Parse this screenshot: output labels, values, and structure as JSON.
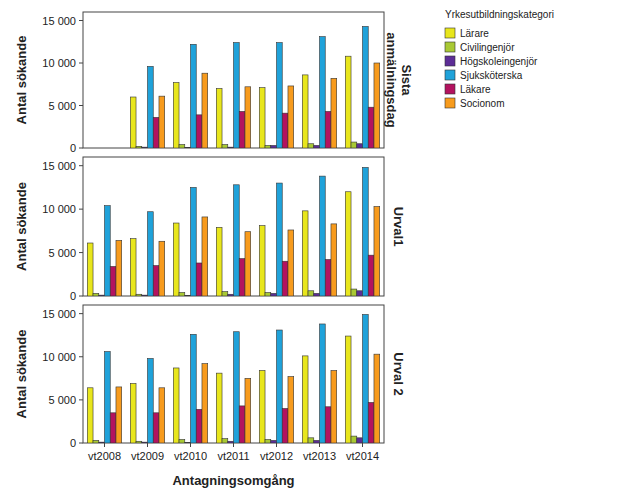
{
  "chart_data": [
    {
      "type": "bar",
      "title": "Sista anmälningsdag",
      "y_label": "Antal sökande",
      "legend_title": "Yrkesutbildningskategori",
      "legend": "right",
      "tick_labels": "y",
      "categories": [
        "vt2008",
        "vt2009",
        "vt2010",
        "vt2011",
        "vt2012",
        "vt2013",
        "vt2014"
      ],
      "ylim": [
        0,
        16000
      ],
      "yticks": [
        0,
        {
          "value": 5000,
          "label": "5 000"
        },
        {
          "value": 10000,
          "label": "10 000"
        },
        {
          "value": 15000,
          "label": "15 000"
        }
      ],
      "series": [
        {
          "name": "Lärare",
          "color": "#e8e61c",
          "values": [
            null,
            6000,
            7700,
            7000,
            7100,
            8600,
            10800
          ]
        },
        {
          "name": "Civilingenjör",
          "color": "#a9c934",
          "values": [
            null,
            200,
            400,
            400,
            300,
            500,
            700
          ]
        },
        {
          "name": "Högskoleingenjör",
          "color": "#5c2d96",
          "values": [
            null,
            100,
            50,
            100,
            300,
            300,
            500
          ]
        },
        {
          "name": "Sjuksköterska",
          "color": "#1fa2da",
          "values": [
            null,
            9600,
            12200,
            12400,
            12400,
            13100,
            14300
          ]
        },
        {
          "name": "Läkare",
          "color": "#b3125f",
          "values": [
            null,
            3600,
            3900,
            4300,
            4100,
            4300,
            4800
          ]
        },
        {
          "name": "Socionom",
          "color": "#f79b1d",
          "values": [
            null,
            6100,
            8800,
            7200,
            7300,
            8200,
            10000
          ]
        }
      ]
    },
    {
      "type": "bar",
      "title": "Urval1",
      "y_label": "Antal sökande",
      "tick_labels": "y",
      "categories": [
        "vt2008",
        "vt2009",
        "vt2010",
        "vt2011",
        "vt2012",
        "vt2013",
        "vt2014"
      ],
      "ylim": [
        0,
        16000
      ],
      "yticks": [
        0,
        {
          "value": 5000,
          "label": "5 000"
        },
        {
          "value": 10000,
          "label": "10 000"
        },
        {
          "value": 15000,
          "label": "15 000"
        }
      ],
      "series": [
        {
          "name": "Lärare",
          "color": "#e8e61c",
          "values": [
            6100,
            6600,
            8400,
            7900,
            8100,
            9800,
            12000
          ]
        },
        {
          "name": "Civilingenjör",
          "color": "#a9c934",
          "values": [
            300,
            200,
            400,
            500,
            400,
            600,
            800
          ]
        },
        {
          "name": "Högskoleingenjör",
          "color": "#5c2d96",
          "values": [
            100,
            100,
            50,
            200,
            300,
            300,
            600
          ]
        },
        {
          "name": "Sjuksköterska",
          "color": "#1fa2da",
          "values": [
            10400,
            9700,
            12500,
            12800,
            13000,
            13800,
            14800
          ]
        },
        {
          "name": "Läkare",
          "color": "#b3125f",
          "values": [
            3400,
            3500,
            3800,
            4300,
            4000,
            4200,
            4700
          ]
        },
        {
          "name": "Socionom",
          "color": "#f79b1d",
          "values": [
            6400,
            6300,
            9100,
            7400,
            7600,
            8300,
            10300
          ]
        }
      ]
    },
    {
      "type": "bar",
      "title": "Urval 2",
      "y_label": "Antal sökande",
      "x_label": "Antagningsomgång",
      "categories": [
        "vt2008",
        "vt2009",
        "vt2010",
        "vt2011",
        "vt2012",
        "vt2013",
        "vt2014"
      ],
      "ylim": [
        0,
        16000
      ],
      "yticks": [
        0,
        {
          "value": 5000,
          "label": "5 000"
        },
        {
          "value": 10000,
          "label": "10 000"
        },
        {
          "value": 15000,
          "label": "15 000"
        }
      ],
      "series": [
        {
          "name": "Lärare",
          "color": "#e8e61c",
          "values": [
            6400,
            6900,
            8700,
            8100,
            8400,
            10100,
            12400
          ]
        },
        {
          "name": "Civilingenjör",
          "color": "#a9c934",
          "values": [
            300,
            200,
            400,
            500,
            400,
            600,
            800
          ]
        },
        {
          "name": "Högskoleingenjör",
          "color": "#5c2d96",
          "values": [
            100,
            100,
            50,
            200,
            300,
            300,
            600
          ]
        },
        {
          "name": "Sjuksköterska",
          "color": "#1fa2da",
          "values": [
            10600,
            9800,
            12600,
            12900,
            13100,
            13800,
            14900
          ]
        },
        {
          "name": "Läkare",
          "color": "#b3125f",
          "values": [
            3500,
            3500,
            3900,
            4300,
            4000,
            4200,
            4700
          ]
        },
        {
          "name": "Socionom",
          "color": "#f79b1d",
          "values": [
            6500,
            6400,
            9200,
            7500,
            7700,
            8400,
            10300
          ]
        }
      ]
    }
  ]
}
